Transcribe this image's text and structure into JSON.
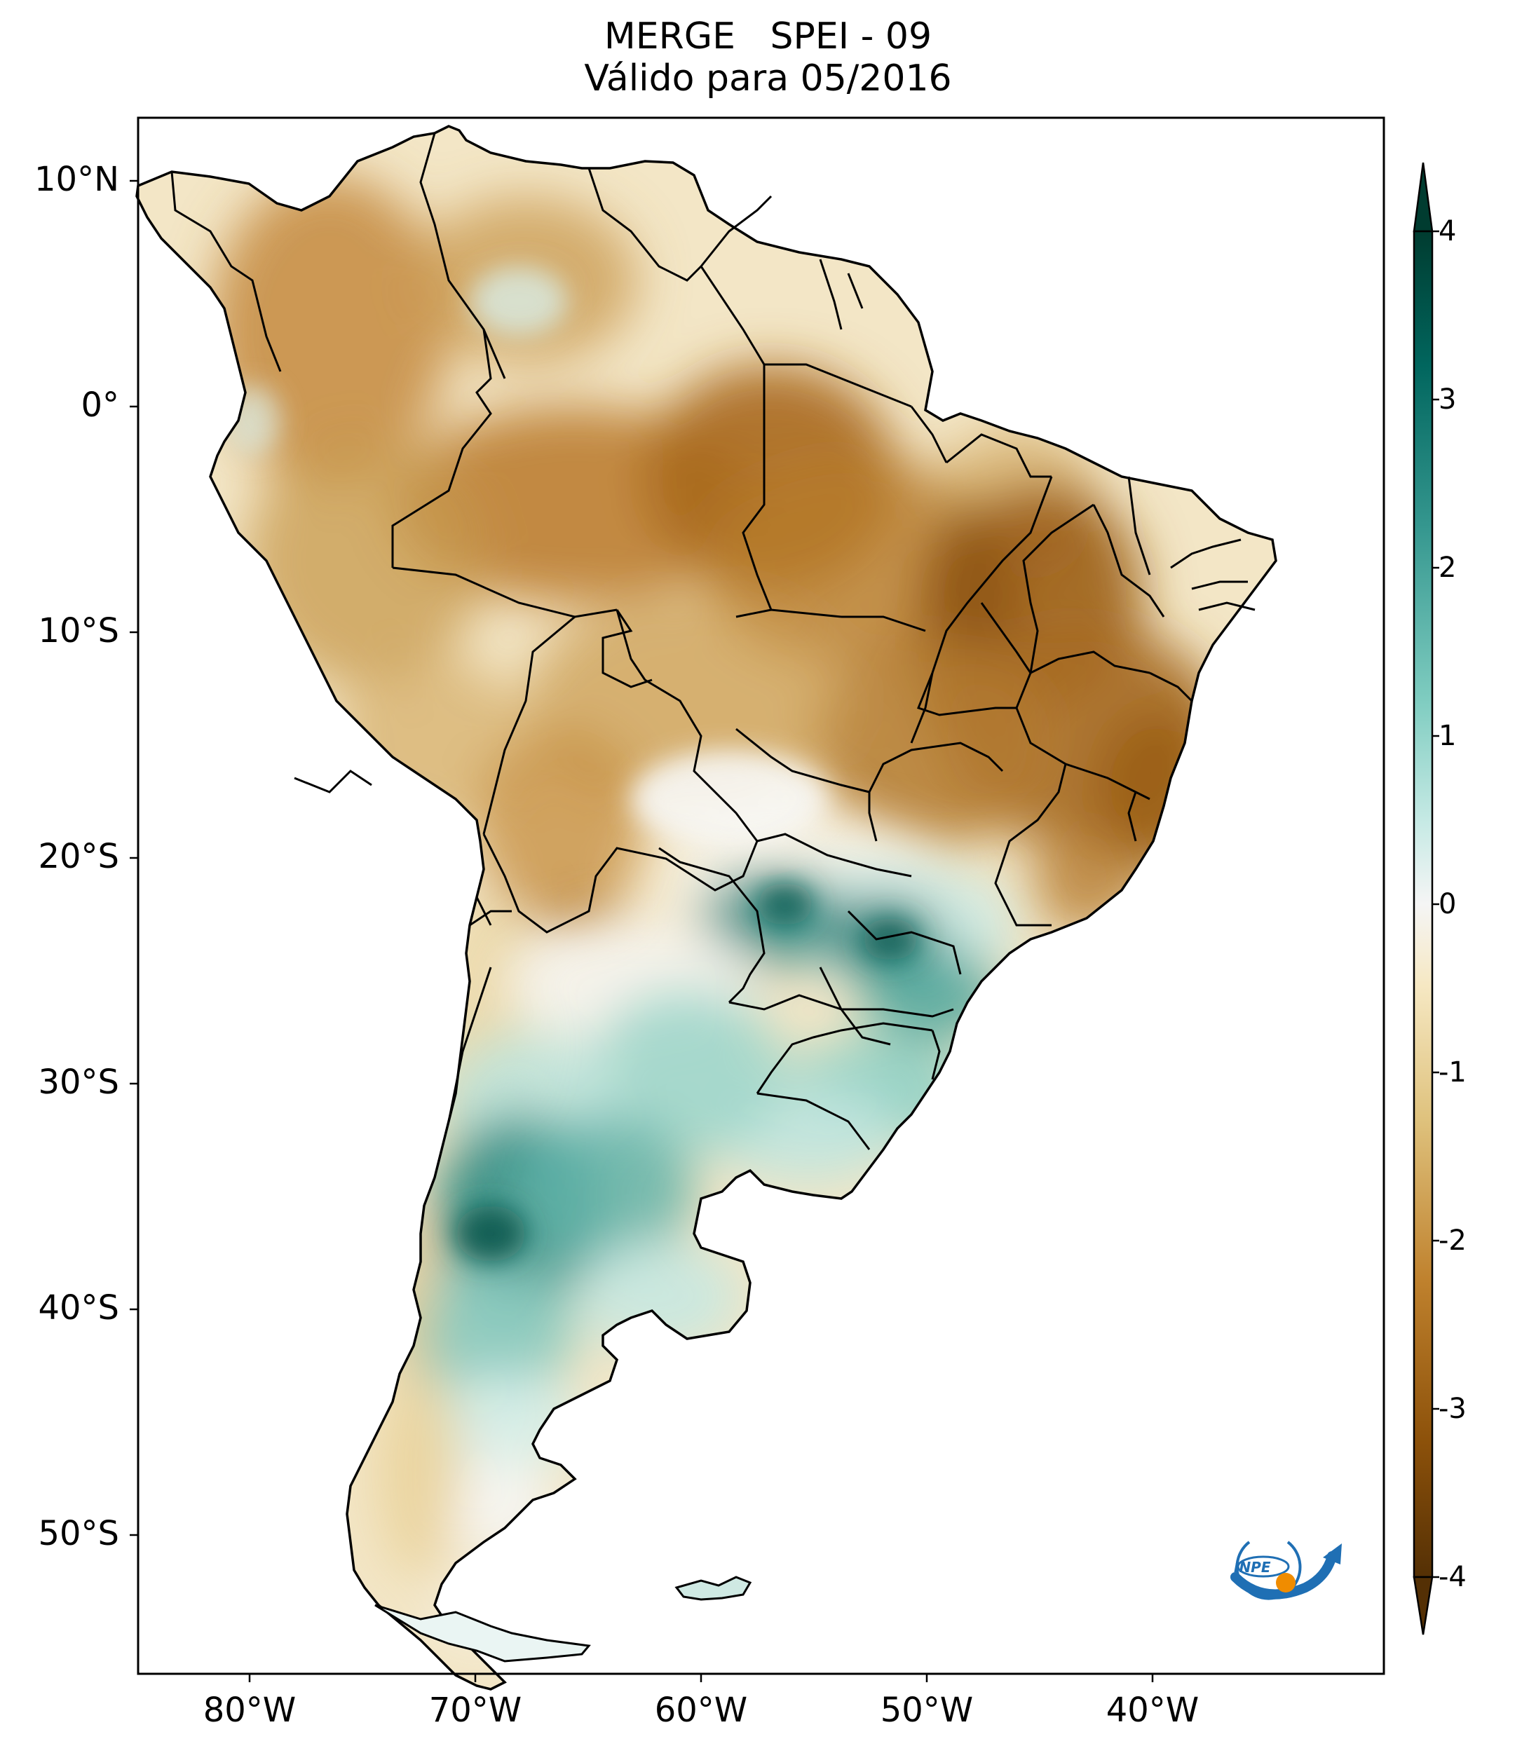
{
  "title": {
    "line1": "MERGE   SPEI - 09",
    "line2": "Válido para 05/2016"
  },
  "map": {
    "type": "choropleth-raster",
    "region": "South America",
    "variable": "SPEI - 09",
    "lat_range": [
      -56,
      12.5
    ],
    "lon_range": [
      -85,
      -30
    ],
    "lat_ticks": [
      "10°N",
      "0°",
      "10°S",
      "20°S",
      "30°S",
      "40°S",
      "50°S"
    ],
    "lon_ticks": [
      "80°W",
      "70°W",
      "60°W",
      "50°W",
      "40°W"
    ],
    "pattern_summary": {
      "dry_regions": [
        "Colombia",
        "Venezuela",
        "Amazon",
        "Northeast Brazil",
        "Central Brazil",
        "Peru",
        "Bolivia"
      ],
      "wet_regions": [
        "Paraguay",
        "Southern Brazil",
        "Uruguay",
        "Central Argentina"
      ]
    }
  },
  "colorbar": {
    "ticks": [
      "4",
      "3",
      "2",
      "1",
      "0",
      "-1",
      "-2",
      "-3",
      "-4"
    ],
    "colors": [
      "#003c30",
      "#01665e",
      "#35978f",
      "#80cdc1",
      "#c7eae5",
      "#f5f5f5",
      "#f6e8c3",
      "#dfc27d",
      "#bf812d",
      "#8c510a",
      "#543005"
    ],
    "range": [
      -4,
      4
    ],
    "extend": "both"
  },
  "logo": {
    "text": "INPE",
    "colors": [
      "#1f6fb4",
      "#f08c00"
    ]
  }
}
